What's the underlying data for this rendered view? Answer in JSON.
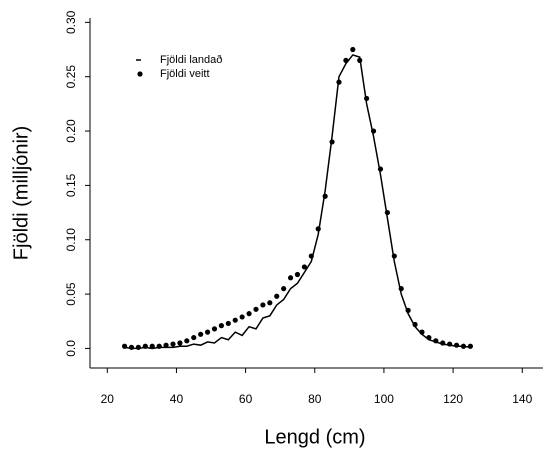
{
  "chart_data": {
    "type": "line",
    "x_label": "Lengd (cm)",
    "y_label": "Fjöldi (milljónir)",
    "x": [
      25,
      27,
      29,
      31,
      33,
      35,
      37,
      39,
      41,
      43,
      45,
      47,
      49,
      51,
      53,
      55,
      57,
      59,
      61,
      63,
      65,
      67,
      69,
      71,
      73,
      75,
      77,
      79,
      81,
      83,
      85,
      87,
      89,
      91,
      93,
      95,
      97,
      99,
      101,
      103,
      105,
      107,
      109,
      111,
      113,
      115,
      117,
      119,
      121,
      123,
      125
    ],
    "series": [
      {
        "name": "Fjöldi landað",
        "kind": "line",
        "color": "#000000",
        "values": [
          0.001,
          0.0,
          0.0,
          0.001,
          0.0,
          0.001,
          0.001,
          0.001,
          0.002,
          0.002,
          0.004,
          0.003,
          0.006,
          0.005,
          0.01,
          0.008,
          0.015,
          0.012,
          0.02,
          0.018,
          0.028,
          0.03,
          0.04,
          0.045,
          0.055,
          0.06,
          0.07,
          0.08,
          0.105,
          0.145,
          0.195,
          0.25,
          0.262,
          0.27,
          0.268,
          0.225,
          0.195,
          0.16,
          0.12,
          0.08,
          0.05,
          0.032,
          0.02,
          0.013,
          0.008,
          0.006,
          0.004,
          0.003,
          0.002,
          0.002,
          0.001
        ]
      },
      {
        "name": "Fjöldi veitt",
        "kind": "scatter",
        "color": "#000000",
        "values": [
          0.002,
          0.001,
          0.001,
          0.002,
          0.002,
          0.002,
          0.003,
          0.004,
          0.005,
          0.007,
          0.01,
          0.013,
          0.015,
          0.018,
          0.021,
          0.023,
          0.026,
          0.029,
          0.032,
          0.036,
          0.04,
          0.042,
          0.048,
          0.055,
          0.065,
          0.068,
          0.075,
          0.085,
          0.11,
          0.14,
          0.19,
          0.245,
          0.265,
          0.275,
          0.265,
          0.23,
          0.2,
          0.165,
          0.125,
          0.085,
          0.055,
          0.035,
          0.022,
          0.015,
          0.01,
          0.007,
          0.005,
          0.004,
          0.003,
          0.002,
          0.002
        ]
      }
    ],
    "xlim": [
      15,
      146
    ],
    "ylim": [
      -0.018,
      0.304
    ],
    "xticks": [
      20,
      40,
      60,
      80,
      100,
      120,
      140
    ],
    "yticks": [
      {
        "value": 0,
        "label": "0.0"
      },
      0.05,
      {
        "value": 0.1,
        "label": "0.10"
      },
      0.15,
      {
        "value": 0.2,
        "label": "0.20"
      },
      0.25,
      {
        "value": 0.3,
        "label": "0.30"
      }
    ],
    "legend": "upper left"
  }
}
